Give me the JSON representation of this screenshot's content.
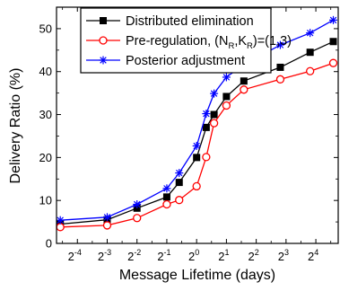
{
  "chart_data": {
    "type": "line",
    "xlabel": "Message Lifetime (days)",
    "ylabel": "Delivery Ratio (%)",
    "x_scale": "log2",
    "xlim": [
      -4.7,
      4.75
    ],
    "ylim": [
      0,
      55
    ],
    "x_ticks": [
      {
        "base": "2",
        "exp": "-4",
        "value": 0.0625
      },
      {
        "base": "2",
        "exp": "-3",
        "value": 0.125
      },
      {
        "base": "2",
        "exp": "-2",
        "value": 0.25
      },
      {
        "base": "2",
        "exp": "-1",
        "value": 0.5
      },
      {
        "base": "2",
        "exp": "0",
        "value": 1
      },
      {
        "base": "2",
        "exp": "1",
        "value": 2
      },
      {
        "base": "2",
        "exp": "2",
        "value": 4
      },
      {
        "base": "2",
        "exp": "3",
        "value": 8
      },
      {
        "base": "2",
        "exp": "4",
        "value": 16
      }
    ],
    "y_ticks": [
      "0",
      "10",
      "20",
      "30",
      "40",
      "50"
    ],
    "legend_position": "top-left",
    "series": [
      {
        "name": "Distributed elimination",
        "color": "#000000",
        "marker": "square-filled",
        "x": [
          0.042,
          0.125,
          0.25,
          0.5,
          0.667,
          1,
          1.25,
          1.5,
          2,
          3,
          7,
          14,
          24
        ],
        "y": [
          4.5,
          5.5,
          8.2,
          10.8,
          14.2,
          20,
          27,
          30,
          34.2,
          37.8,
          41,
          44.5,
          47
        ]
      },
      {
        "name": "Pre-regulation, (N_R,K_R)=(1,3)",
        "name_parts": {
          "prefix": "Pre-regulation, (N",
          "sub1": "R",
          "mid": ",K",
          "sub2": "R",
          "suffix": ")=(1,3)"
        },
        "color": "#ff0000",
        "marker": "circle-open",
        "x": [
          0.042,
          0.125,
          0.25,
          0.5,
          0.667,
          1,
          1.25,
          1.5,
          2,
          3,
          7,
          14,
          24
        ],
        "y": [
          3.8,
          4.2,
          5.9,
          9.1,
          10.1,
          13.3,
          20.1,
          28,
          32.1,
          35.8,
          38.2,
          40.1,
          42
        ]
      },
      {
        "name": "Posterior adjustment",
        "color": "#0000ff",
        "marker": "asterisk",
        "x": [
          0.042,
          0.125,
          0.25,
          0.5,
          0.667,
          1,
          1.25,
          1.5,
          2,
          3,
          7,
          14,
          24
        ],
        "y": [
          5.4,
          6.1,
          9.1,
          12.8,
          16.4,
          22.7,
          30.2,
          34.9,
          38.7,
          41.6,
          46.2,
          49,
          52
        ]
      }
    ]
  }
}
